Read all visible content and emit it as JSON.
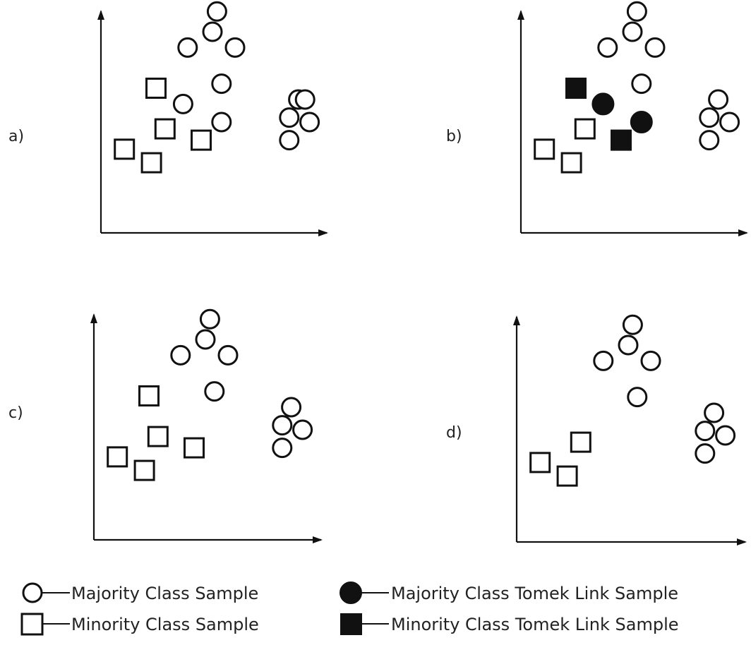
{
  "colors": {
    "ink": "#111111",
    "background": "#ffffff"
  },
  "panels": [
    {
      "label": "a)",
      "majority": [
        [
          -0.3,
          9.4
        ],
        [
          -0.5,
          8.5
        ],
        [
          -1.6,
          7.8
        ],
        [
          0.5,
          7.8
        ],
        [
          -0.1,
          6.2
        ],
        [
          -1.8,
          5.3
        ],
        [
          -0.1,
          4.5
        ],
        [
          3.3,
          5.5
        ],
        [
          3.8,
          4.5
        ],
        [
          2.9,
          3.7
        ],
        [
          2.9,
          4.7
        ],
        [
          3.6,
          5.5
        ]
      ],
      "minority": [
        [
          -3.0,
          6.0
        ],
        [
          -2.6,
          4.2
        ],
        [
          -1.0,
          3.7
        ],
        [
          -4.4,
          3.3
        ],
        [
          -3.2,
          2.7
        ]
      ],
      "tomek_majority": [],
      "tomek_minority": []
    },
    {
      "label": "b)",
      "majority": [
        [
          -0.3,
          9.4
        ],
        [
          -0.5,
          8.5
        ],
        [
          -1.6,
          7.8
        ],
        [
          0.5,
          7.8
        ],
        [
          -0.1,
          6.2
        ],
        [
          3.3,
          5.5
        ],
        [
          3.8,
          4.5
        ],
        [
          2.9,
          3.7
        ],
        [
          2.9,
          4.7
        ]
      ],
      "minority": [
        [
          -2.6,
          4.2
        ],
        [
          -4.4,
          3.3
        ],
        [
          -3.2,
          2.7
        ]
      ],
      "tomek_majority": [
        [
          -1.8,
          5.3
        ],
        [
          -0.1,
          4.5
        ]
      ],
      "tomek_minority": [
        [
          -3.0,
          6.0
        ],
        [
          -1.0,
          3.7
        ]
      ]
    },
    {
      "label": "c)",
      "majority": [
        [
          -0.3,
          9.4
        ],
        [
          -0.5,
          8.5
        ],
        [
          -1.6,
          7.8
        ],
        [
          0.5,
          7.8
        ],
        [
          -0.1,
          6.2
        ],
        [
          3.3,
          5.5
        ],
        [
          3.8,
          4.5
        ],
        [
          2.9,
          3.7
        ],
        [
          2.9,
          4.7
        ]
      ],
      "minority": [
        [
          -3.0,
          6.0
        ],
        [
          -2.6,
          4.2
        ],
        [
          -1.0,
          3.7
        ],
        [
          -4.4,
          3.3
        ],
        [
          -3.2,
          2.7
        ]
      ],
      "tomek_majority": [],
      "tomek_minority": []
    },
    {
      "label": "d)",
      "majority": [
        [
          -0.3,
          9.4
        ],
        [
          -0.5,
          8.5
        ],
        [
          -1.6,
          7.8
        ],
        [
          0.5,
          7.8
        ],
        [
          -0.1,
          6.2
        ],
        [
          3.3,
          5.5
        ],
        [
          3.8,
          4.5
        ],
        [
          2.9,
          3.7
        ],
        [
          2.9,
          4.7
        ]
      ],
      "minority": [
        [
          -2.6,
          4.2
        ],
        [
          -4.4,
          3.3
        ],
        [
          -3.2,
          2.7
        ]
      ],
      "tomek_majority": [],
      "tomek_minority": []
    }
  ],
  "legend": {
    "majority_label": "Majority Class Sample",
    "minority_label": "Minority Class Sample",
    "tomek_majority_label": "Majority Class Tomek Link Sample",
    "tomek_minority_label": "Minority Class Tomek Link Sample"
  }
}
